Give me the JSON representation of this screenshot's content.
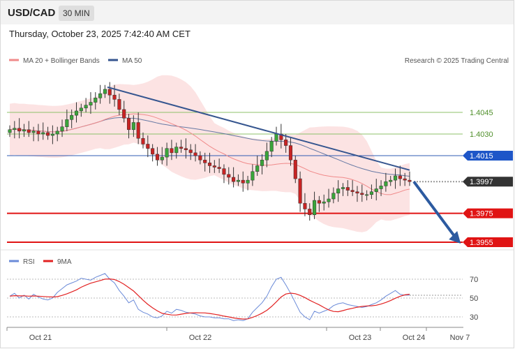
{
  "header": {
    "symbol": "USD/CAD",
    "timeframe": "30 MIN",
    "timestamp": "Thursday, October 23, 2025 7:42:40 AM CET"
  },
  "legend": {
    "ma20_bb": "MA 20 + Bollinger Bands",
    "ma50": "MA 50",
    "source": "Research © 2025 Trading Central",
    "ma20_color": "#f08a8a",
    "ma50_color": "#35558f"
  },
  "chart_data": [
    {
      "type": "candlestick",
      "title": "USD/CAD 30 MIN",
      "ylim": [
        1.395,
        1.4065
      ],
      "x_labels": [
        "Oct 21",
        "Oct 22",
        "Oct 23",
        "Oct 24",
        "Nov 7"
      ],
      "levels": [
        {
          "label": "1.4045",
          "value": 1.4045,
          "style": "green-thin"
        },
        {
          "label": "1.4030",
          "value": 1.403,
          "style": "green-thin"
        },
        {
          "label": "1.4015",
          "value": 1.4015,
          "style": "blue"
        },
        {
          "label": "1.3997",
          "value": 1.3997,
          "style": "current-price"
        },
        {
          "label": "1.3975",
          "value": 1.3975,
          "style": "red-thick"
        },
        {
          "label": "1.3955",
          "value": 1.3955,
          "style": "red-thick"
        }
      ],
      "trendline": {
        "from": [
          0.0,
          1.40625
        ],
        "to": [
          1.0,
          1.4005
        ]
      },
      "projection": {
        "from": [
          1.0,
          1.3997
        ],
        "to": [
          1.14,
          1.3955
        ]
      },
      "closes": [
        1.4033,
        1.4034,
        1.4032,
        1.4033,
        1.4031,
        1.4032,
        1.403,
        1.4031,
        1.4029,
        1.403,
        1.4032,
        1.4035,
        1.404,
        1.4043,
        1.4046,
        1.4048,
        1.405,
        1.4052,
        1.4055,
        1.4058,
        1.4061,
        1.4057,
        1.4054,
        1.4047,
        1.4041,
        1.4033,
        1.4038,
        1.4027,
        1.4023,
        1.402,
        1.4016,
        1.4012,
        1.4014,
        1.402,
        1.4017,
        1.4021,
        1.402,
        1.4019,
        1.4017,
        1.4015,
        1.4012,
        1.401,
        1.4008,
        1.4007,
        1.4006,
        1.4002,
        1.4,
        1.3997,
        1.3998,
        1.3996,
        1.3998,
        1.4004,
        1.4008,
        1.4012,
        1.4018,
        1.4025,
        1.403,
        1.4026,
        1.4022,
        1.4012,
        1.3999,
        1.3982,
        1.3978,
        1.3974,
        1.3984,
        1.3982,
        1.3983,
        1.3985,
        1.3989,
        1.3992,
        1.3993,
        1.3991,
        1.399,
        1.3989,
        1.3988,
        1.3988,
        1.399,
        1.3992,
        1.3994,
        1.3997,
        1.3998,
        1.4001,
        1.3999,
        1.3998,
        1.3997
      ]
    },
    {
      "type": "line",
      "series": [
        {
          "name": "RSI"
        },
        {
          "name": "9MA"
        }
      ],
      "levels": [
        {
          "label": "70",
          "value": 70
        },
        {
          "label": "50",
          "value": 50
        },
        {
          "label": "30",
          "value": 30
        }
      ],
      "ylim": [
        20,
        80
      ],
      "colors": {
        "rsi": "#6a8ad8",
        "ma9": "#e22222"
      },
      "rsi": [
        52,
        55,
        50,
        53,
        49,
        54,
        51,
        49,
        48,
        50,
        56,
        60,
        64,
        66,
        68,
        71,
        70,
        69,
        72,
        74,
        76,
        70,
        66,
        58,
        52,
        45,
        48,
        38,
        35,
        33,
        30,
        29,
        31,
        36,
        34,
        38,
        37,
        35,
        34,
        33,
        31,
        30,
        30,
        29,
        29,
        28,
        28,
        26,
        27,
        26,
        28,
        35,
        40,
        45,
        52,
        62,
        70,
        72,
        64,
        55,
        45,
        35,
        30,
        27,
        36,
        34,
        36,
        38,
        42,
        44,
        45,
        43,
        42,
        41,
        40,
        41,
        43,
        45,
        48,
        52,
        55,
        58,
        54,
        53,
        53
      ],
      "ma9": [
        52,
        52.5,
        52.3,
        52.4,
        52,
        52.2,
        52,
        51.6,
        51.3,
        51.1,
        51.5,
        52.8,
        54.5,
        56.5,
        58.7,
        61.5,
        63.8,
        65.8,
        67.2,
        68.6,
        70.1,
        70.3,
        69.6,
        67.5,
        64.7,
        61.1,
        57.5,
        52.7,
        47.7,
        43.3,
        39.6,
        36.4,
        33.8,
        32.8,
        32.1,
        32.0,
        32.9,
        33.7,
        34.2,
        34.4,
        34.3,
        34.2,
        33.6,
        32.8,
        31.9,
        30.8,
        30.0,
        28.9,
        28.2,
        27.7,
        27.9,
        29.5,
        31.5,
        33.9,
        37.0,
        41.1,
        46.0,
        51.1,
        54.3,
        55.2,
        54.6,
        52.8,
        50.5,
        47.6,
        45.2,
        42.8,
        40.0,
        37.4,
        35.8,
        35.5,
        36.7,
        38.1,
        39.1,
        40.3,
        41.1,
        41.6,
        41.8,
        42.4,
        43.6,
        45.3,
        47.3,
        49.8,
        51.9,
        53.4,
        54.1
      ]
    }
  ]
}
